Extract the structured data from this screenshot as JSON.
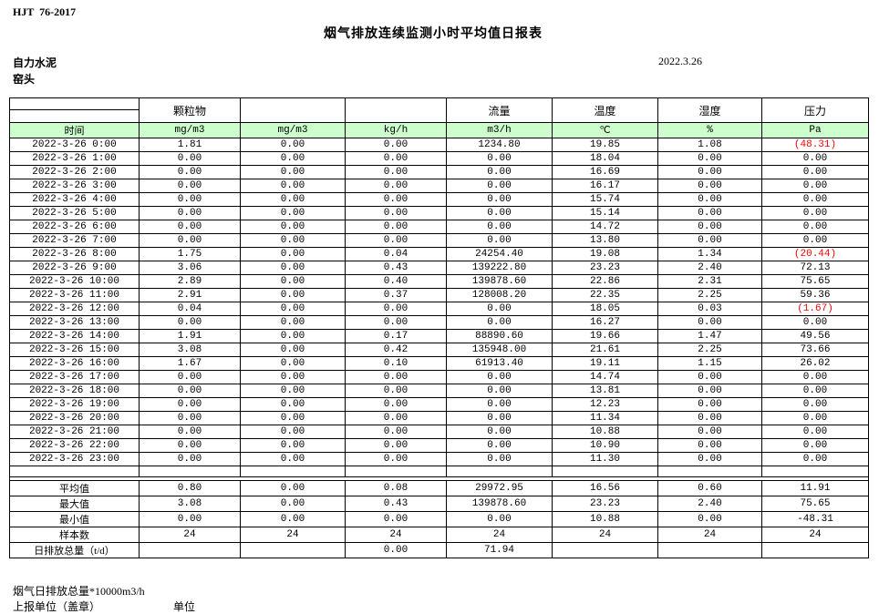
{
  "page": {
    "doc_code": "HJT  76-2017",
    "title": "烟气排放连续监测小时平均值日报表",
    "company": "自力水泥",
    "station": "窑头",
    "date": "2022.3.26"
  },
  "colors": {
    "unit_row_green": "#ccffcc",
    "negative_red": "#ff0000",
    "border": "#000000"
  },
  "table": {
    "param_headers": [
      "",
      "颗粒物",
      "",
      "",
      "流量",
      "温度",
      "湿度",
      "压力"
    ],
    "unit_headers": [
      "时间",
      "mg/m3",
      "mg/m3",
      "kg/h",
      "m3/h",
      "℃",
      "%",
      "Pa"
    ],
    "rows": [
      [
        "2022-3-26 0:00",
        "1.81",
        "0.00",
        "0.00",
        "1234.80",
        "19.85",
        "1.08",
        "(48.31)"
      ],
      [
        "2022-3-26 1:00",
        "0.00",
        "0.00",
        "0.00",
        "0.00",
        "18.04",
        "0.00",
        "0.00"
      ],
      [
        "2022-3-26 2:00",
        "0.00",
        "0.00",
        "0.00",
        "0.00",
        "16.69",
        "0.00",
        "0.00"
      ],
      [
        "2022-3-26 3:00",
        "0.00",
        "0.00",
        "0.00",
        "0.00",
        "16.17",
        "0.00",
        "0.00"
      ],
      [
        "2022-3-26 4:00",
        "0.00",
        "0.00",
        "0.00",
        "0.00",
        "15.74",
        "0.00",
        "0.00"
      ],
      [
        "2022-3-26 5:00",
        "0.00",
        "0.00",
        "0.00",
        "0.00",
        "15.14",
        "0.00",
        "0.00"
      ],
      [
        "2022-3-26 6:00",
        "0.00",
        "0.00",
        "0.00",
        "0.00",
        "14.72",
        "0.00",
        "0.00"
      ],
      [
        "2022-3-26 7:00",
        "0.00",
        "0.00",
        "0.00",
        "0.00",
        "13.80",
        "0.00",
        "0.00"
      ],
      [
        "2022-3-26 8:00",
        "1.75",
        "0.00",
        "0.04",
        "24254.40",
        "19.08",
        "1.34",
        "(20.44)"
      ],
      [
        "2022-3-26 9:00",
        "3.06",
        "0.00",
        "0.43",
        "139222.80",
        "23.23",
        "2.40",
        "72.13"
      ],
      [
        "2022-3-26 10:00",
        "2.89",
        "0.00",
        "0.40",
        "139878.60",
        "22.86",
        "2.31",
        "75.65"
      ],
      [
        "2022-3-26 11:00",
        "2.91",
        "0.00",
        "0.37",
        "128008.20",
        "22.35",
        "2.25",
        "59.36"
      ],
      [
        "2022-3-26 12:00",
        "0.04",
        "0.00",
        "0.00",
        "0.00",
        "18.05",
        "0.03",
        "(1.67)"
      ],
      [
        "2022-3-26 13:00",
        "0.00",
        "0.00",
        "0.00",
        "0.00",
        "16.27",
        "0.00",
        "0.00"
      ],
      [
        "2022-3-26 14:00",
        "1.91",
        "0.00",
        "0.17",
        "88890.60",
        "19.66",
        "1.47",
        "49.56"
      ],
      [
        "2022-3-26 15:00",
        "3.08",
        "0.00",
        "0.42",
        "135948.00",
        "21.61",
        "2.25",
        "73.66"
      ],
      [
        "2022-3-26 16:00",
        "1.67",
        "0.00",
        "0.10",
        "61913.40",
        "19.11",
        "1.15",
        "26.02"
      ],
      [
        "2022-3-26 17:00",
        "0.00",
        "0.00",
        "0.00",
        "0.00",
        "14.74",
        "0.00",
        "0.00"
      ],
      [
        "2022-3-26 18:00",
        "0.00",
        "0.00",
        "0.00",
        "0.00",
        "13.81",
        "0.00",
        "0.00"
      ],
      [
        "2022-3-26 19:00",
        "0.00",
        "0.00",
        "0.00",
        "0.00",
        "12.23",
        "0.00",
        "0.00"
      ],
      [
        "2022-3-26 20:00",
        "0.00",
        "0.00",
        "0.00",
        "0.00",
        "11.34",
        "0.00",
        "0.00"
      ],
      [
        "2022-3-26 21:00",
        "0.00",
        "0.00",
        "0.00",
        "0.00",
        "10.88",
        "0.00",
        "0.00"
      ],
      [
        "2022-3-26 22:00",
        "0.00",
        "0.00",
        "0.00",
        "0.00",
        "10.90",
        "0.00",
        "0.00"
      ],
      [
        "2022-3-26 23:00",
        "0.00",
        "0.00",
        "0.00",
        "0.00",
        "11.30",
        "0.00",
        "0.00"
      ]
    ],
    "blank_row": [
      "",
      "",
      "",
      "",
      "",
      "",
      "",
      ""
    ],
    "summary": [
      [
        "平均值",
        "0.80",
        "0.00",
        "0.08",
        "29972.95",
        "16.56",
        "0.60",
        "11.91"
      ],
      [
        "最大值",
        "3.08",
        "0.00",
        "0.43",
        "139878.60",
        "23.23",
        "2.40",
        "75.65"
      ],
      [
        "最小值",
        "0.00",
        "0.00",
        "0.00",
        "0.00",
        "10.88",
        "0.00",
        "-48.31"
      ],
      [
        "样本数",
        "24",
        "24",
        "24",
        "24",
        "24",
        "24",
        "24"
      ],
      [
        "日排放总量（t/d）",
        "",
        "",
        "0.00",
        "71.94",
        "",
        "",
        ""
      ]
    ]
  },
  "footer": {
    "note1": "烟气日排放总量*10000m3/h",
    "note2": "上报单位（盖章）",
    "note3": "单位"
  }
}
